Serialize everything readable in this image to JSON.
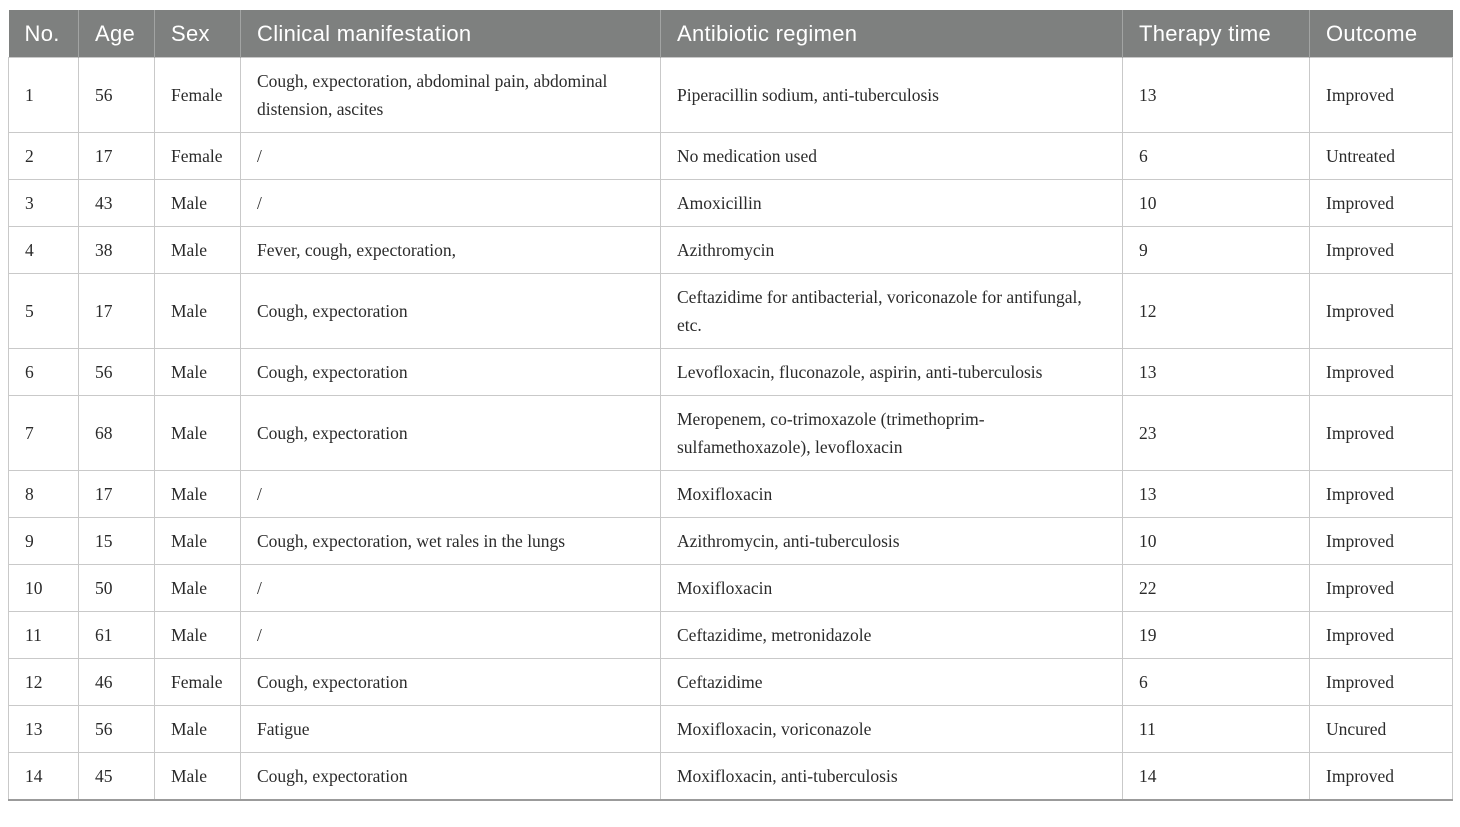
{
  "colors": {
    "header_bg": "#7e807f",
    "header_text": "#ffffff",
    "header_divider": "#a2a4a3",
    "grid_line": "#c9c9c9",
    "text": "#2b2b2b",
    "bottom_line": "#9b9b9b",
    "page_bg": "#ffffff"
  },
  "table": {
    "columns": [
      {
        "label": "No."
      },
      {
        "label": "Age"
      },
      {
        "label": "Sex"
      },
      {
        "label": "Clinical manifestation"
      },
      {
        "label": "Antibiotic regimen"
      },
      {
        "label": "Therapy time"
      },
      {
        "label": "Outcome"
      }
    ],
    "rows": [
      {
        "cells": [
          "1",
          "56",
          "Female",
          "Cough, expectoration, abdominal pain, abdominal distension, ascites",
          "Piperacillin sodium, anti-tuberculosis",
          "13",
          "Improved"
        ]
      },
      {
        "cells": [
          "2",
          "17",
          "Female",
          "/",
          "No medication used",
          "6",
          "Untreated"
        ]
      },
      {
        "cells": [
          "3",
          "43",
          "Male",
          "/",
          "Amoxicillin",
          "10",
          "Improved"
        ]
      },
      {
        "cells": [
          "4",
          "38",
          "Male",
          "Fever, cough, expectoration,",
          "Azithromycin",
          "9",
          "Improved"
        ]
      },
      {
        "cells": [
          "5",
          "17",
          "Male",
          "Cough, expectoration",
          "Ceftazidime for antibacterial, voriconazole for antifungal, etc.",
          "12",
          "Improved"
        ]
      },
      {
        "cells": [
          "6",
          "56",
          "Male",
          "Cough, expectoration",
          "Levofloxacin, fluconazole, aspirin, anti-tuberculosis",
          "13",
          "Improved"
        ]
      },
      {
        "cells": [
          "7",
          "68",
          "Male",
          "Cough, expectoration",
          "Meropenem, co-trimoxazole (trimethoprim-sulfamethoxazole), levofloxacin",
          "23",
          "Improved"
        ]
      },
      {
        "cells": [
          "8",
          "17",
          "Male",
          "/",
          "Moxifloxacin",
          "13",
          "Improved"
        ]
      },
      {
        "cells": [
          "9",
          "15",
          "Male",
          "Cough, expectoration, wet rales in the lungs",
          "Azithromycin, anti-tuberculosis",
          "10",
          "Improved"
        ]
      },
      {
        "cells": [
          "10",
          "50",
          "Male",
          "/",
          "Moxifloxacin",
          "22",
          "Improved"
        ]
      },
      {
        "cells": [
          "11",
          "61",
          "Male",
          "/",
          "Ceftazidime, metronidazole",
          "19",
          "Improved"
        ]
      },
      {
        "cells": [
          "12",
          "46",
          "Female",
          "Cough, expectoration",
          "Ceftazidime",
          "6",
          "Improved"
        ]
      },
      {
        "cells": [
          "13",
          "56",
          "Male",
          "Fatigue",
          "Moxifloxacin, voriconazole",
          "11",
          "Uncured"
        ]
      },
      {
        "cells": [
          "14",
          "45",
          "Male",
          "Cough, expectoration",
          "Moxifloxacin, anti-tuberculosis",
          "14",
          "Improved"
        ]
      }
    ]
  }
}
